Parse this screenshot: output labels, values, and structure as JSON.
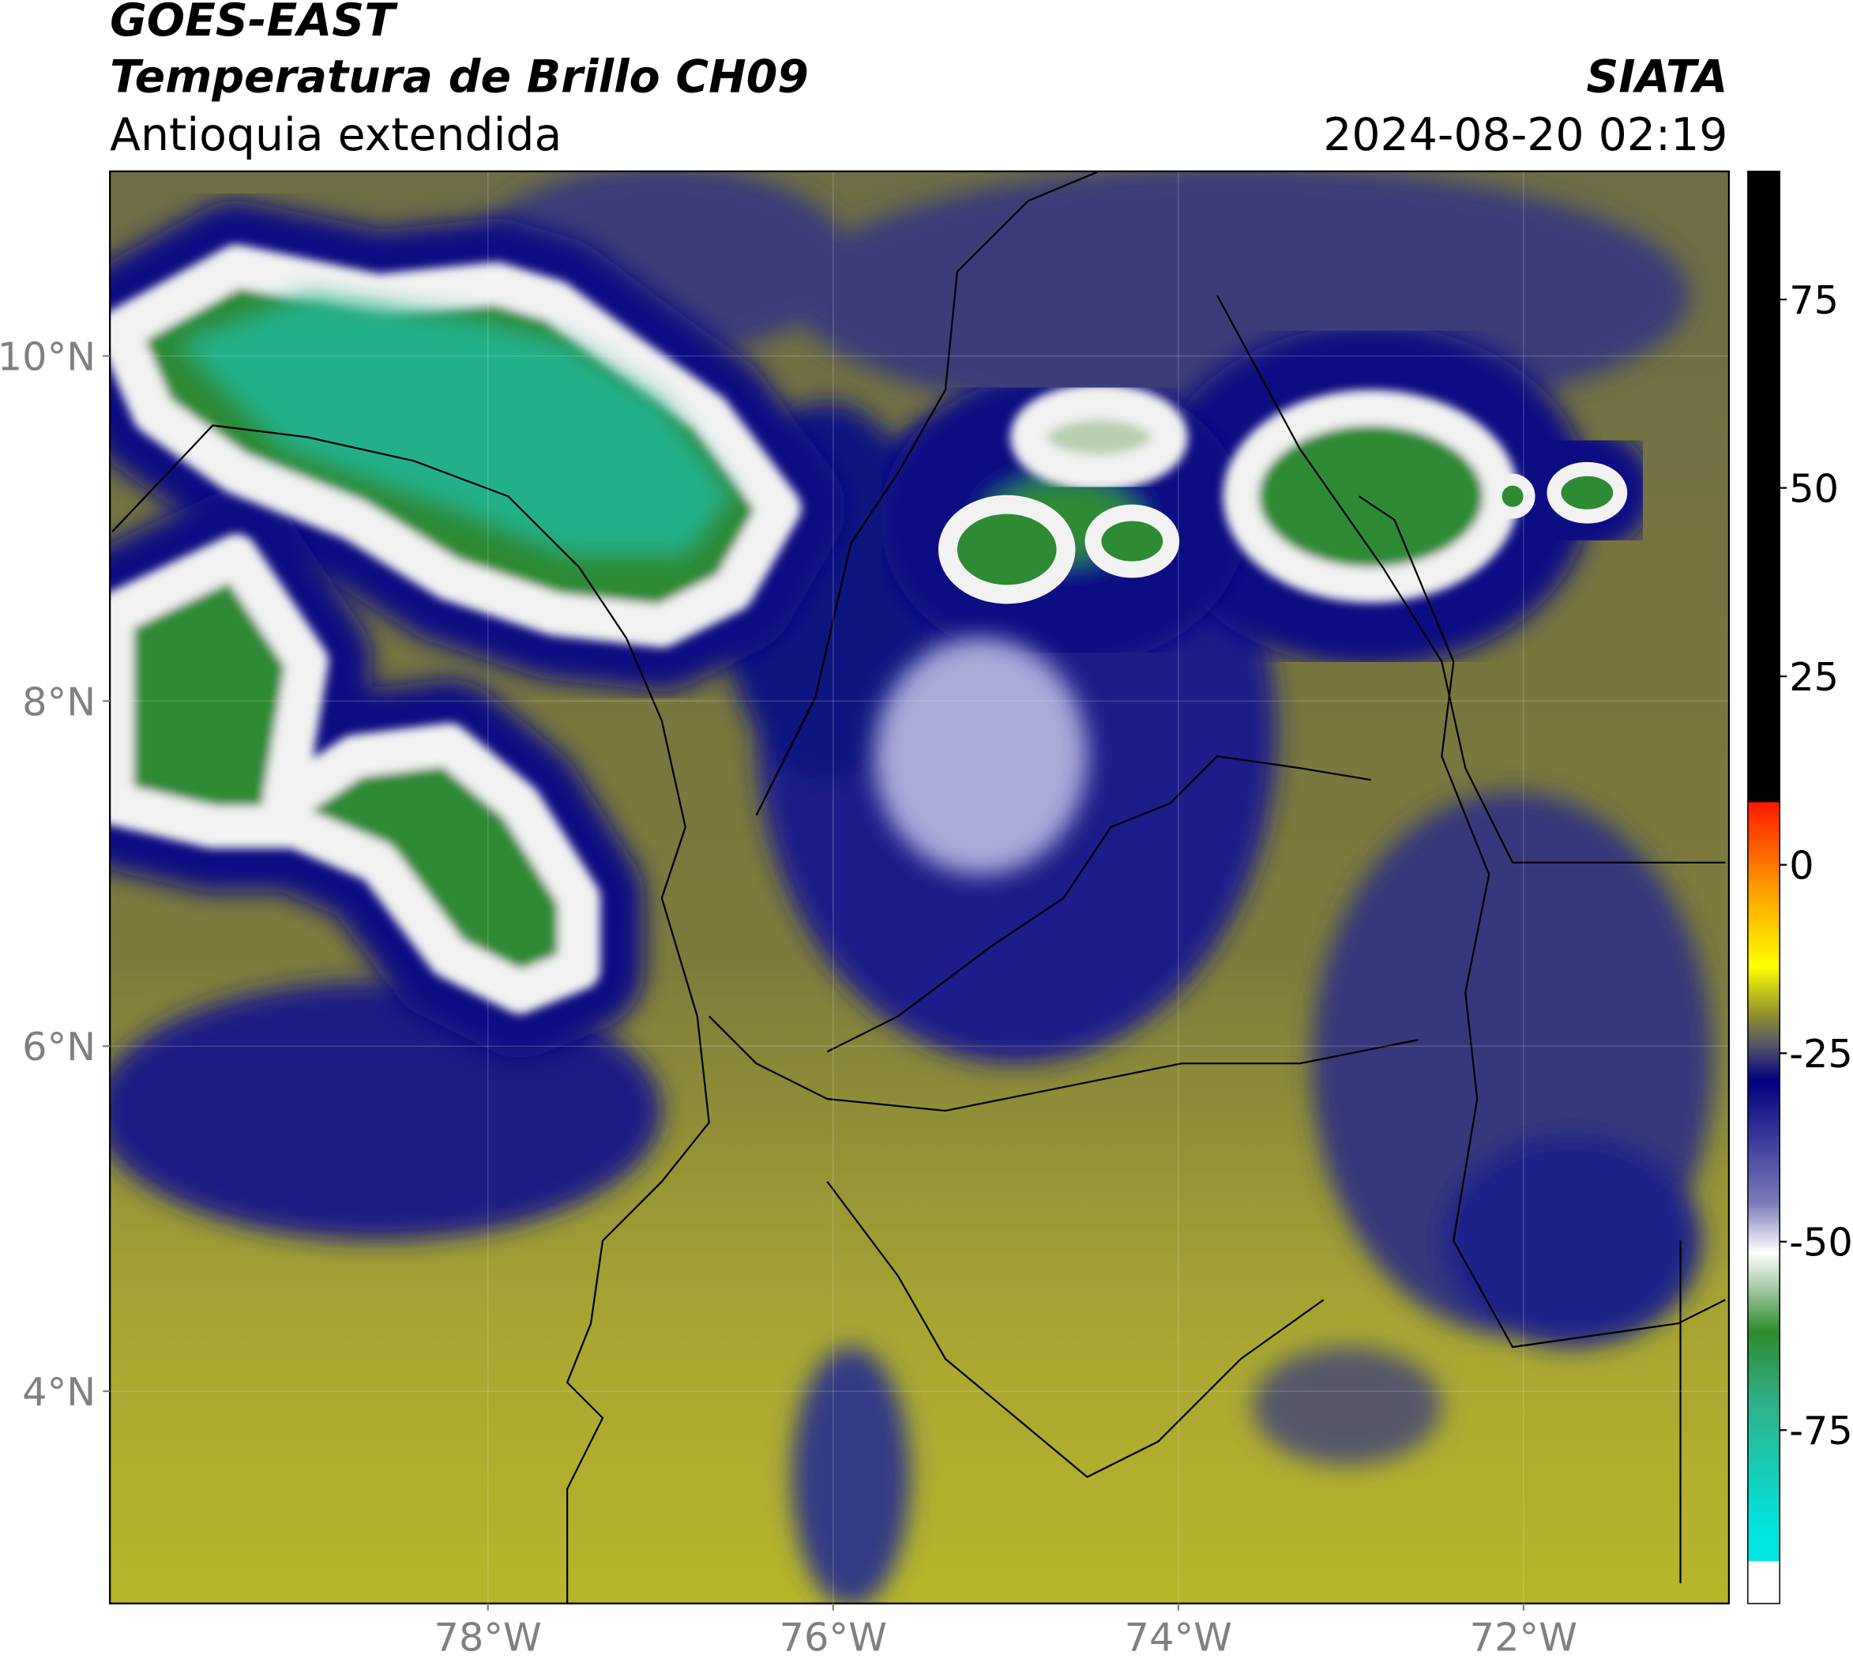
{
  "header": {
    "satellite": "GOES-EAST",
    "product": "Temperatura de Brillo CH09",
    "region": "Antioquia extendida",
    "agency": "SIATA",
    "datetime": "2024-08-20 02:19"
  },
  "chart_data": {
    "type": "map",
    "xlim": [
      -80.19,
      -70.81
    ],
    "ylim": [
      2.77,
      11.07
    ],
    "xticks": [
      {
        "value": -78,
        "label": "78°W"
      },
      {
        "value": -76,
        "label": "76°W"
      },
      {
        "value": -74,
        "label": "74°W"
      },
      {
        "value": -72,
        "label": "72°W"
      }
    ],
    "yticks": [
      {
        "value": 4,
        "label": "4°N"
      },
      {
        "value": 6,
        "label": "6°N"
      },
      {
        "value": 8,
        "label": "8°N"
      },
      {
        "value": 10,
        "label": "10°N"
      }
    ],
    "grid": true,
    "colorbar": {
      "lim": [
        -98,
        92
      ],
      "ticks": [
        -75,
        -50,
        -25,
        0,
        25,
        50,
        75
      ]
    }
  }
}
